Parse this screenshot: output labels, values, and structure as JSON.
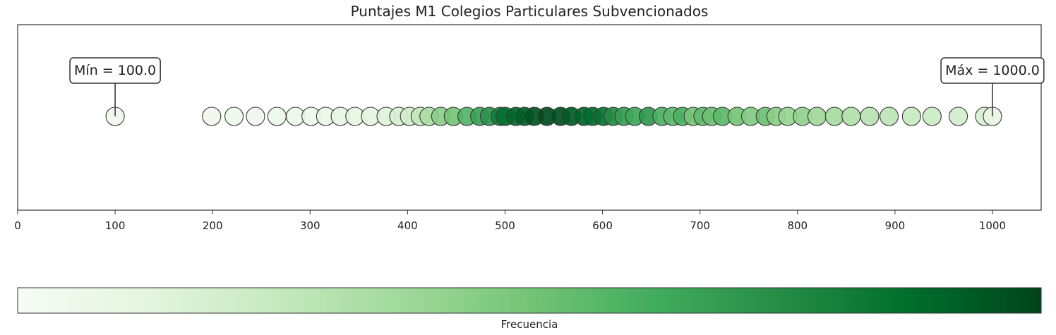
{
  "chart_data": {
    "type": "scatter",
    "title": "Puntajes M1 Colegios Particulares Subvencionados",
    "xlabel": "",
    "ylabel": "",
    "xlim": [
      0,
      1050
    ],
    "xticks": [
      "0",
      "100",
      "200",
      "300",
      "400",
      "500",
      "600",
      "700",
      "800",
      "900",
      "1000"
    ],
    "grid": false,
    "points": [
      {
        "x": 100,
        "f": 0.05
      },
      {
        "x": 199,
        "f": 0.05
      },
      {
        "x": 222,
        "f": 0.06
      },
      {
        "x": 244,
        "f": 0.06
      },
      {
        "x": 266,
        "f": 0.07
      },
      {
        "x": 285,
        "f": 0.07
      },
      {
        "x": 301,
        "f": 0.08
      },
      {
        "x": 316,
        "f": 0.09
      },
      {
        "x": 331,
        "f": 0.1
      },
      {
        "x": 346,
        "f": 0.11
      },
      {
        "x": 362,
        "f": 0.13
      },
      {
        "x": 378,
        "f": 0.15
      },
      {
        "x": 391,
        "f": 0.18
      },
      {
        "x": 402,
        "f": 0.21
      },
      {
        "x": 413,
        "f": 0.26
      },
      {
        "x": 422,
        "f": 0.34
      },
      {
        "x": 434,
        "f": 0.44
      },
      {
        "x": 447,
        "f": 0.5
      },
      {
        "x": 461,
        "f": 0.58
      },
      {
        "x": 474,
        "f": 0.66
      },
      {
        "x": 484,
        "f": 0.72
      },
      {
        "x": 495,
        "f": 0.8
      },
      {
        "x": 500,
        "f": 0.86
      },
      {
        "x": 511,
        "f": 0.9
      },
      {
        "x": 520,
        "f": 0.92
      },
      {
        "x": 530,
        "f": 0.95
      },
      {
        "x": 543,
        "f": 0.98
      },
      {
        "x": 557,
        "f": 0.97
      },
      {
        "x": 568,
        "f": 0.93
      },
      {
        "x": 581,
        "f": 0.9
      },
      {
        "x": 590,
        "f": 0.87
      },
      {
        "x": 601,
        "f": 0.85
      },
      {
        "x": 611,
        "f": 0.75
      },
      {
        "x": 622,
        "f": 0.68
      },
      {
        "x": 633,
        "f": 0.64
      },
      {
        "x": 647,
        "f": 0.7
      },
      {
        "x": 661,
        "f": 0.6
      },
      {
        "x": 672,
        "f": 0.56
      },
      {
        "x": 682,
        "f": 0.6
      },
      {
        "x": 693,
        "f": 0.5
      },
      {
        "x": 703,
        "f": 0.55
      },
      {
        "x": 712,
        "f": 0.52
      },
      {
        "x": 723,
        "f": 0.56
      },
      {
        "x": 738,
        "f": 0.5
      },
      {
        "x": 752,
        "f": 0.46
      },
      {
        "x": 767,
        "f": 0.52
      },
      {
        "x": 778,
        "f": 0.44
      },
      {
        "x": 790,
        "f": 0.4
      },
      {
        "x": 805,
        "f": 0.42
      },
      {
        "x": 820,
        "f": 0.38
      },
      {
        "x": 838,
        "f": 0.36
      },
      {
        "x": 855,
        "f": 0.33
      },
      {
        "x": 874,
        "f": 0.3
      },
      {
        "x": 894,
        "f": 0.28
      },
      {
        "x": 917,
        "f": 0.25
      },
      {
        "x": 938,
        "f": 0.23
      },
      {
        "x": 965,
        "f": 0.2
      },
      {
        "x": 992,
        "f": 0.18
      },
      {
        "x": 1000,
        "f": 0.1
      }
    ],
    "annotations": [
      {
        "text": "Mín = 100.0",
        "x": 100
      },
      {
        "text": "Máx = 1000.0",
        "x": 1000
      }
    ],
    "colorbar": {
      "label": "Frecuencia",
      "colormap": "Greens",
      "colors": [
        "#f7fcf5",
        "#e5f5e0",
        "#c7e9c0",
        "#a1d99b",
        "#74c476",
        "#41ab5d",
        "#238b45",
        "#006d2c",
        "#00441b"
      ]
    }
  }
}
